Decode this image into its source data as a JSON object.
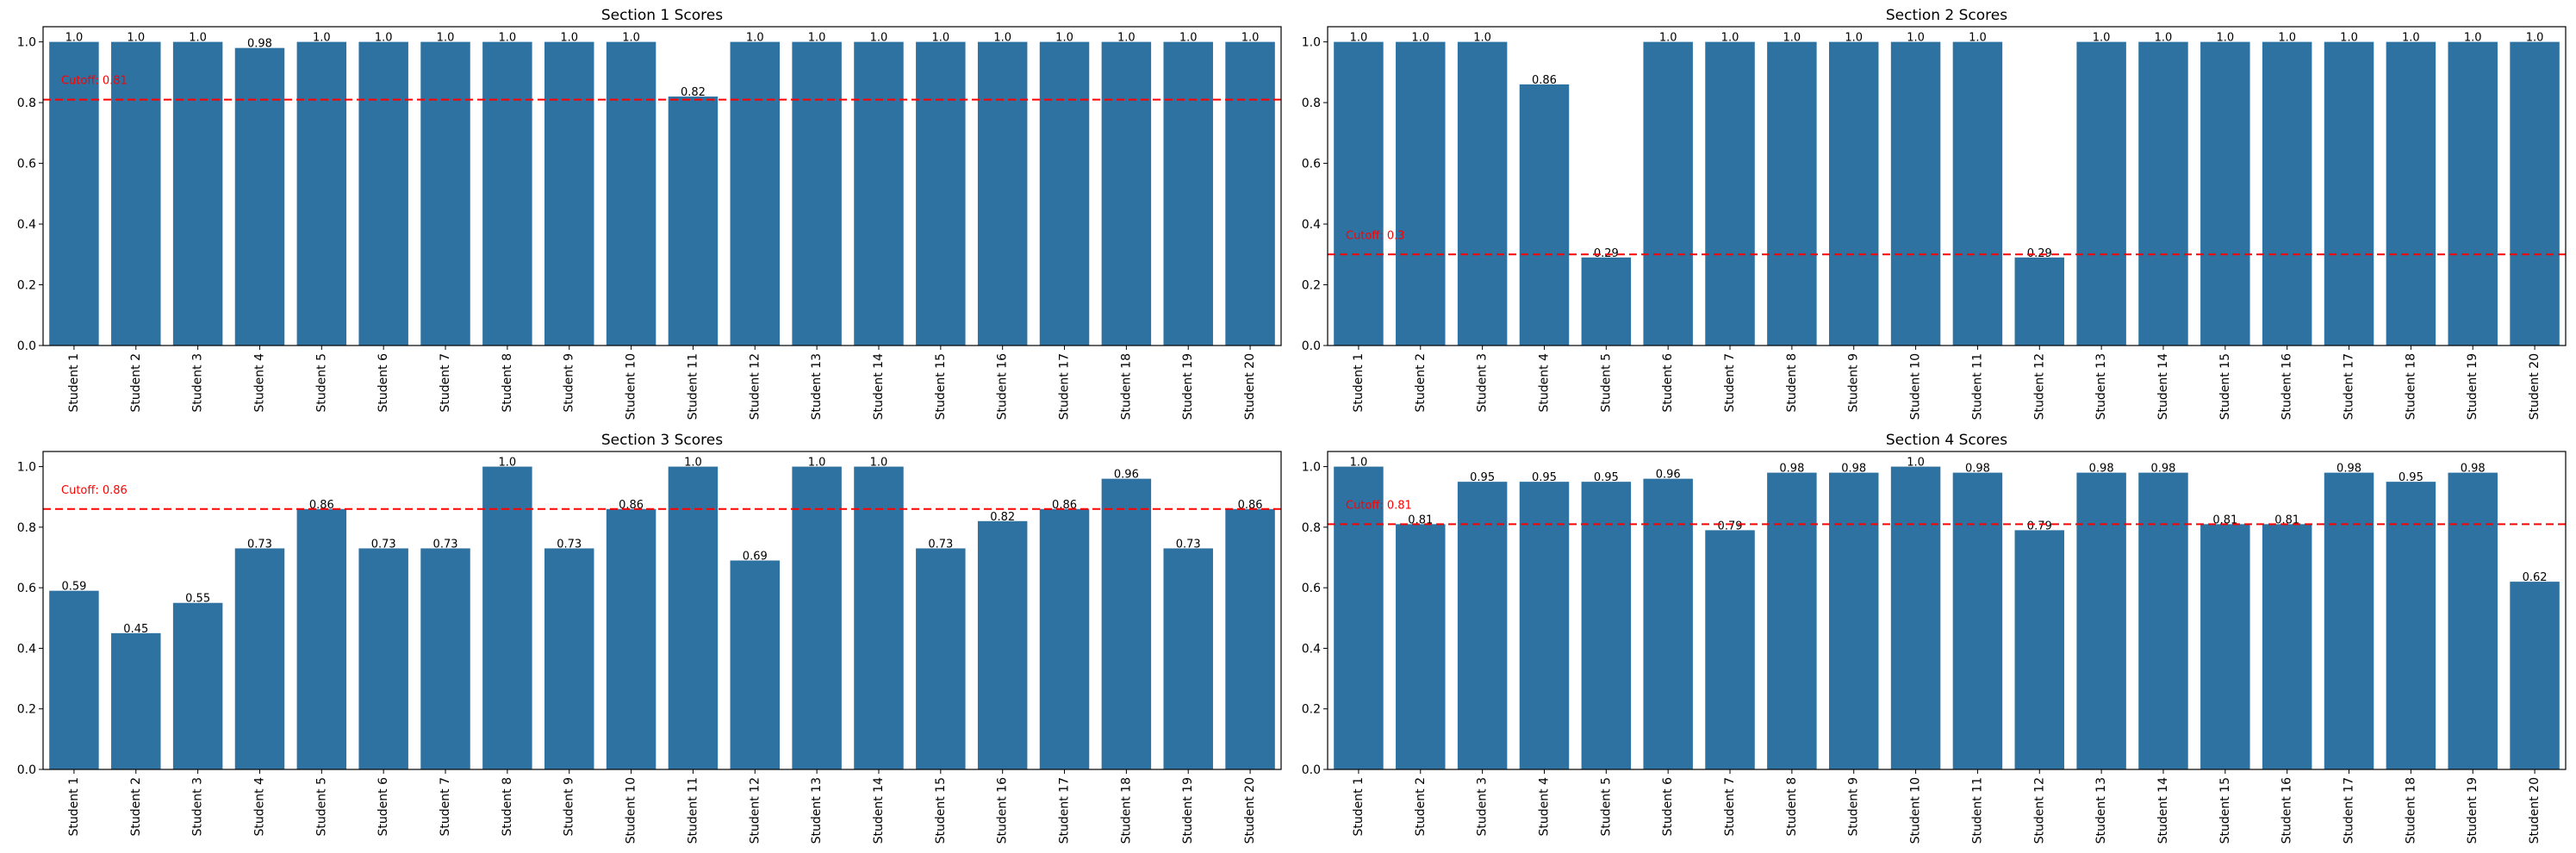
{
  "theme": {
    "bar_color": "#2e72a2",
    "cutoff_color": "#ff0000",
    "axis_color": "#000000",
    "background": "#ffffff"
  },
  "chart_data": [
    {
      "type": "bar",
      "title": "Section 1 Scores",
      "xlabel": "",
      "ylabel": "",
      "categories": [
        "Student 1",
        "Student 2",
        "Student 3",
        "Student 4",
        "Student 5",
        "Student 6",
        "Student 7",
        "Student 8",
        "Student 9",
        "Student 10",
        "Student 11",
        "Student 12",
        "Student 13",
        "Student 14",
        "Student 15",
        "Student 16",
        "Student 17",
        "Student 18",
        "Student 19",
        "Student 20"
      ],
      "values": [
        1.0,
        1.0,
        1.0,
        0.98,
        1.0,
        1.0,
        1.0,
        1.0,
        1.0,
        1.0,
        0.82,
        1.0,
        1.0,
        1.0,
        1.0,
        1.0,
        1.0,
        1.0,
        1.0,
        1.0
      ],
      "value_labels": [
        "1.0",
        "1.0",
        "1.0",
        "0.98",
        "1.0",
        "1.0",
        "1.0",
        "1.0",
        "1.0",
        "1.0",
        "0.82",
        "1.0",
        "1.0",
        "1.0",
        "1.0",
        "1.0",
        "1.0",
        "1.0",
        "1.0",
        "1.0"
      ],
      "cutoff": 0.81,
      "cutoff_label": "Cutoff: 0.81",
      "ylim": [
        0,
        1.05
      ],
      "yticks": [
        0.0,
        0.2,
        0.4,
        0.6,
        0.8,
        1.0
      ],
      "ytick_labels": [
        "0.0",
        "0.2",
        "0.4",
        "0.6",
        "0.8",
        "1.0"
      ],
      "grid": false,
      "legend": "none"
    },
    {
      "type": "bar",
      "title": "Section 2 Scores",
      "xlabel": "",
      "ylabel": "",
      "categories": [
        "Student 1",
        "Student 2",
        "Student 3",
        "Student 4",
        "Student 5",
        "Student 6",
        "Student 7",
        "Student 8",
        "Student 9",
        "Student 10",
        "Student 11",
        "Student 12",
        "Student 13",
        "Student 14",
        "Student 15",
        "Student 16",
        "Student 17",
        "Student 18",
        "Student 19",
        "Student 20"
      ],
      "values": [
        1.0,
        1.0,
        1.0,
        0.86,
        0.29,
        1.0,
        1.0,
        1.0,
        1.0,
        1.0,
        1.0,
        0.29,
        1.0,
        1.0,
        1.0,
        1.0,
        1.0,
        1.0,
        1.0,
        1.0
      ],
      "value_labels": [
        "1.0",
        "1.0",
        "1.0",
        "0.86",
        "0.29",
        "1.0",
        "1.0",
        "1.0",
        "1.0",
        "1.0",
        "1.0",
        "0.29",
        "1.0",
        "1.0",
        "1.0",
        "1.0",
        "1.0",
        "1.0",
        "1.0",
        "1.0"
      ],
      "cutoff": 0.3,
      "cutoff_label": "Cutoff: 0.3",
      "ylim": [
        0,
        1.05
      ],
      "yticks": [
        0.0,
        0.2,
        0.4,
        0.6,
        0.8,
        1.0
      ],
      "ytick_labels": [
        "0.0",
        "0.2",
        "0.4",
        "0.6",
        "0.8",
        "1.0"
      ],
      "grid": false,
      "legend": "none"
    },
    {
      "type": "bar",
      "title": "Section 3 Scores",
      "xlabel": "",
      "ylabel": "",
      "categories": [
        "Student 1",
        "Student 2",
        "Student 3",
        "Student 4",
        "Student 5",
        "Student 6",
        "Student 7",
        "Student 8",
        "Student 9",
        "Student 10",
        "Student 11",
        "Student 12",
        "Student 13",
        "Student 14",
        "Student 15",
        "Student 16",
        "Student 17",
        "Student 18",
        "Student 19",
        "Student 20"
      ],
      "values": [
        0.59,
        0.45,
        0.55,
        0.73,
        0.86,
        0.73,
        0.73,
        1.0,
        0.73,
        0.86,
        1.0,
        0.69,
        1.0,
        1.0,
        0.73,
        0.82,
        0.86,
        0.96,
        0.73,
        0.86
      ],
      "value_labels": [
        "0.59",
        "0.45",
        "0.55",
        "0.73",
        "0.86",
        "0.73",
        "0.73",
        "1.0",
        "0.73",
        "0.86",
        "1.0",
        "0.69",
        "1.0",
        "1.0",
        "0.73",
        "0.82",
        "0.86",
        "0.96",
        "0.73",
        "0.86"
      ],
      "cutoff": 0.86,
      "cutoff_label": "Cutoff: 0.86",
      "ylim": [
        0,
        1.05
      ],
      "yticks": [
        0.0,
        0.2,
        0.4,
        0.6,
        0.8,
        1.0
      ],
      "ytick_labels": [
        "0.0",
        "0.2",
        "0.4",
        "0.6",
        "0.8",
        "1.0"
      ],
      "grid": false,
      "legend": "none"
    },
    {
      "type": "bar",
      "title": "Section 4 Scores",
      "xlabel": "",
      "ylabel": "",
      "categories": [
        "Student 1",
        "Student 2",
        "Student 3",
        "Student 4",
        "Student 5",
        "Student 6",
        "Student 7",
        "Student 8",
        "Student 9",
        "Student 10",
        "Student 11",
        "Student 12",
        "Student 13",
        "Student 14",
        "Student 15",
        "Student 16",
        "Student 17",
        "Student 18",
        "Student 19",
        "Student 20"
      ],
      "values": [
        1.0,
        0.81,
        0.95,
        0.95,
        0.95,
        0.96,
        0.79,
        0.98,
        0.98,
        1.0,
        0.98,
        0.79,
        0.98,
        0.98,
        0.81,
        0.81,
        0.98,
        0.95,
        0.98,
        0.62
      ],
      "value_labels": [
        "1.0",
        "0.81",
        "0.95",
        "0.95",
        "0.95",
        "0.96",
        "0.79",
        "0.98",
        "0.98",
        "1.0",
        "0.98",
        "0.79",
        "0.98",
        "0.98",
        "0.81",
        "0.81",
        "0.98",
        "0.95",
        "0.98",
        "0.62"
      ],
      "cutoff": 0.81,
      "cutoff_label": "Cutoff: 0.81",
      "ylim": [
        0,
        1.05
      ],
      "yticks": [
        0.0,
        0.2,
        0.4,
        0.6,
        0.8,
        1.0
      ],
      "ytick_labels": [
        "0.0",
        "0.2",
        "0.4",
        "0.6",
        "0.8",
        "1.0"
      ],
      "grid": false,
      "legend": "none"
    }
  ]
}
